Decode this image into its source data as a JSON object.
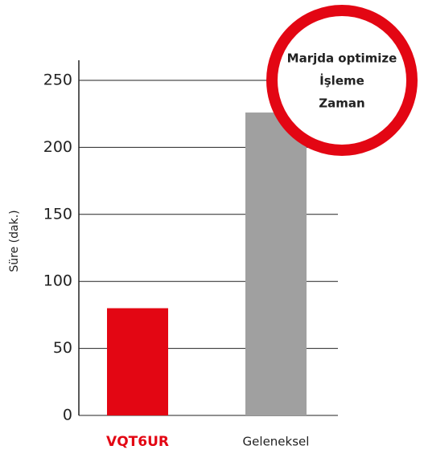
{
  "chart_data": {
    "type": "bar",
    "y_label": "Süre (dak.)",
    "categories": [
      "VQT6UR",
      "Geleneksel"
    ],
    "values": [
      80,
      226
    ],
    "colors": [
      "#e30613",
      "#a0a0a0"
    ],
    "ylim": [
      0,
      265
    ],
    "yticks": [
      0,
      50,
      100,
      150,
      200,
      250
    ],
    "grid": true,
    "annotation": [
      "Marjda optimize",
      "İşleme",
      "Zaman"
    ],
    "annotation_color": "#e30613"
  }
}
